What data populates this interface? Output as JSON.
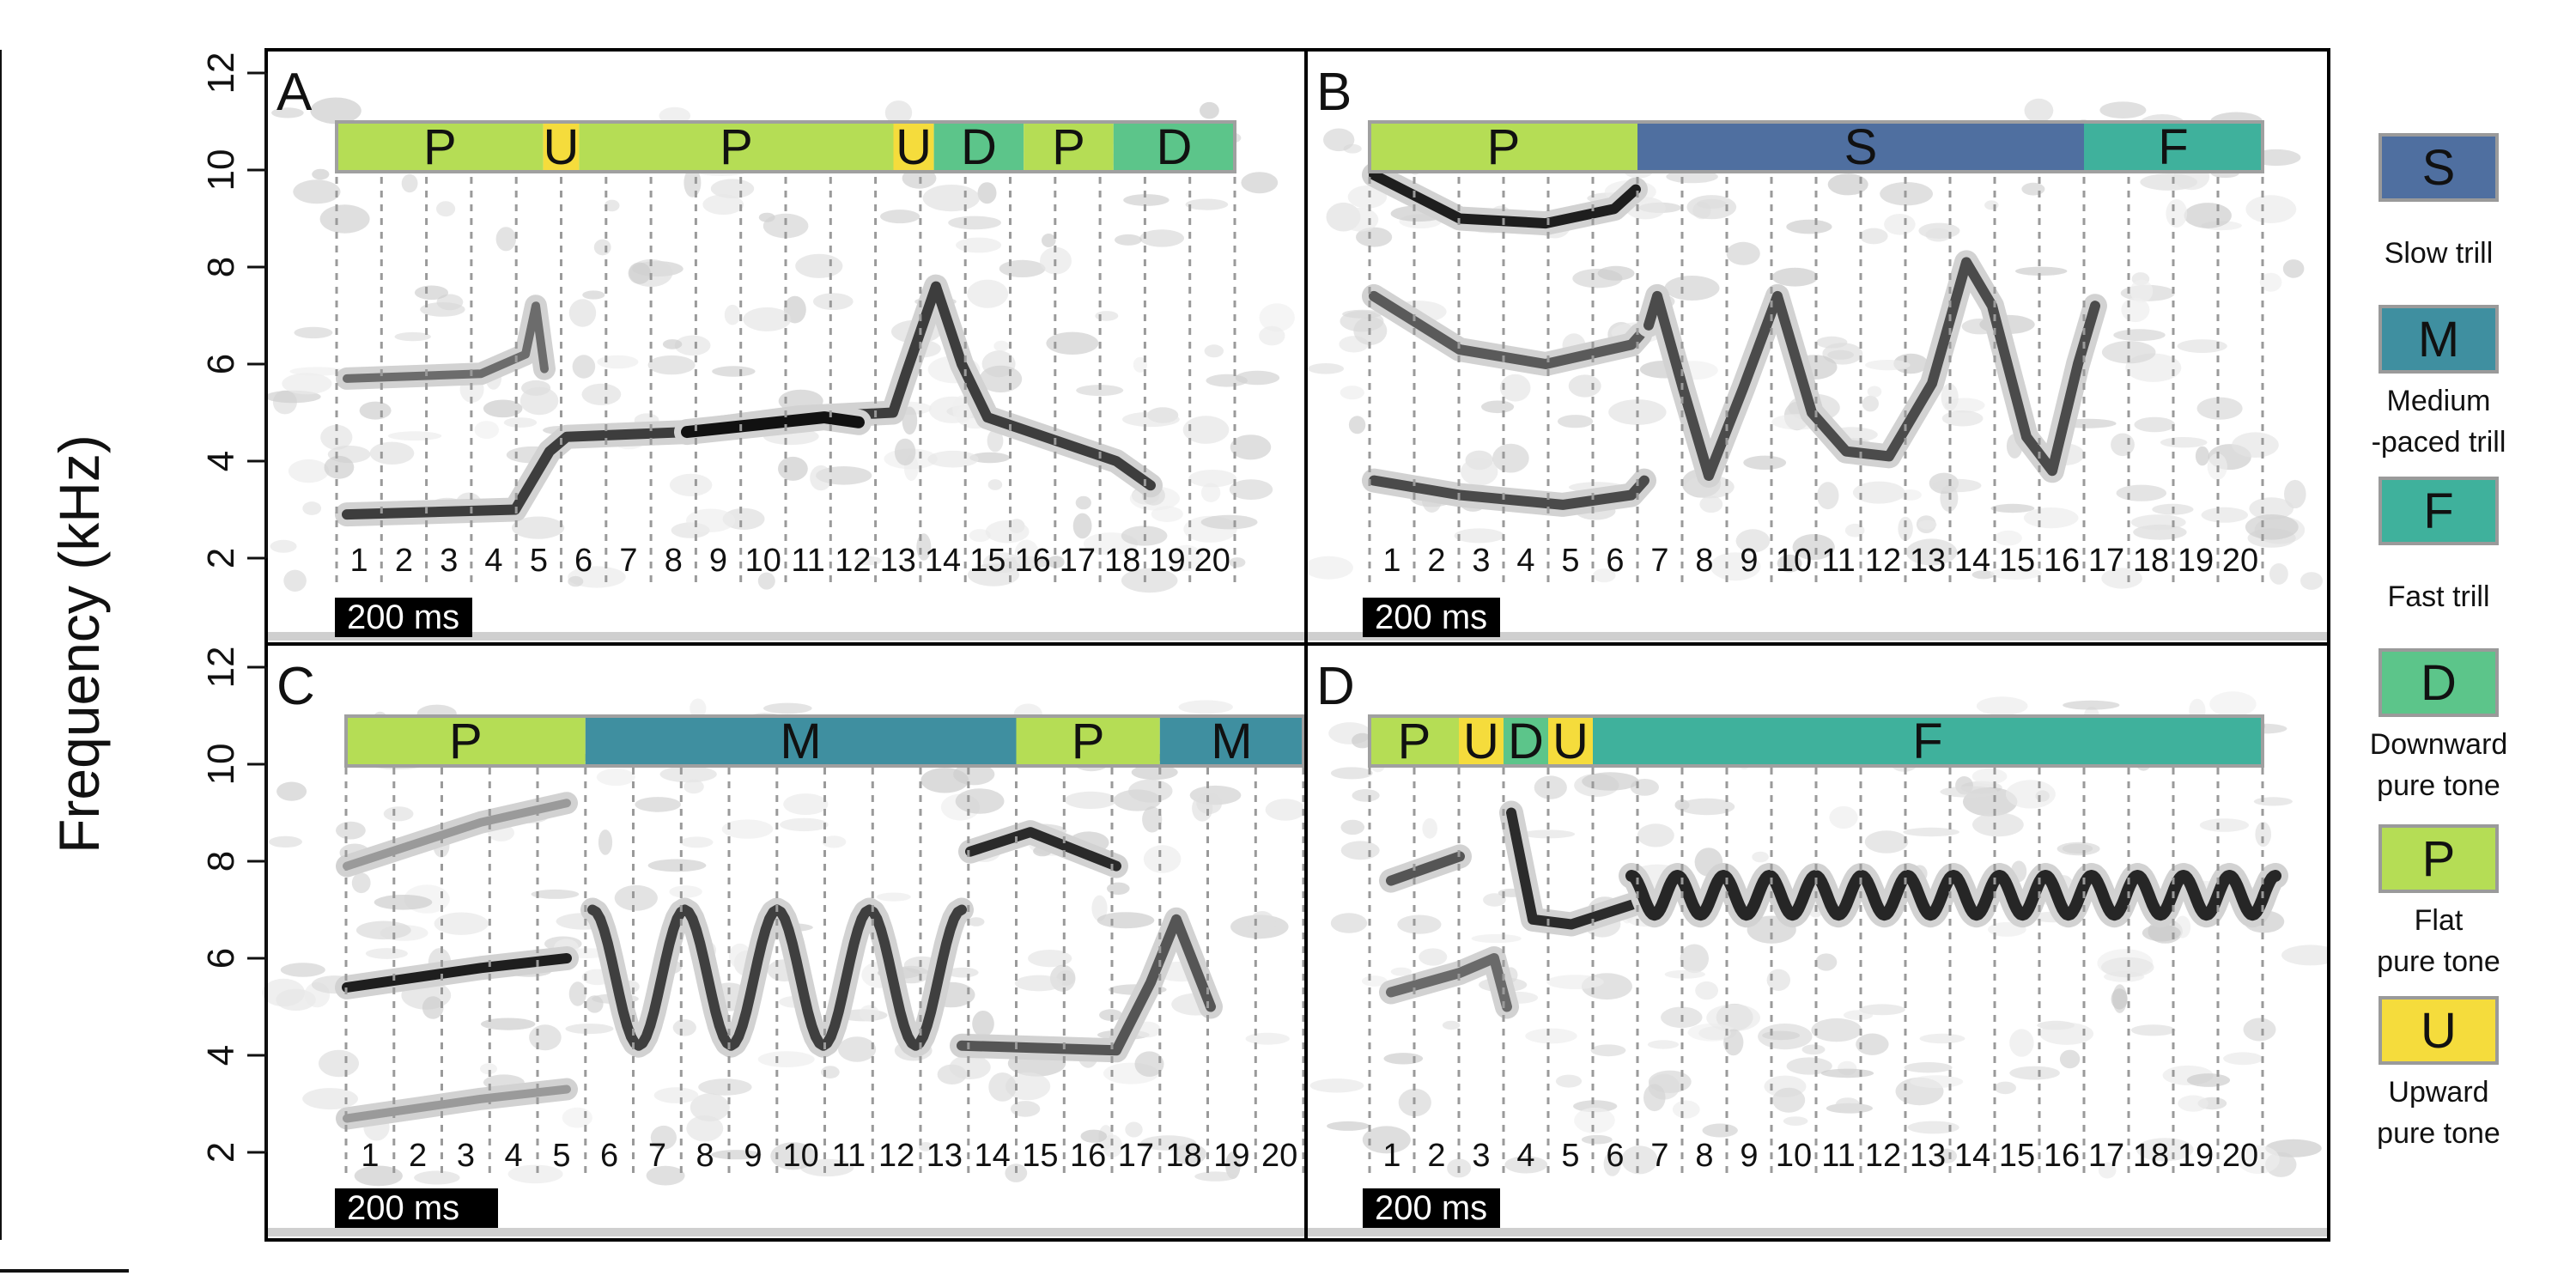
{
  "y_axis": {
    "label": "Frequency (kHz)",
    "ticks": [
      "2",
      "4",
      "6",
      "8",
      "10",
      "12"
    ]
  },
  "scale_bar": "200 ms",
  "panels": [
    {
      "id": "A",
      "segment_count": 20,
      "syllables": [
        {
          "code": "P",
          "span": 4.6,
          "color": "#b5dd55"
        },
        {
          "code": "U",
          "span": 0.8,
          "color": "#f5dc3c"
        },
        {
          "code": "P",
          "span": 7.0,
          "color": "#b5dd55"
        },
        {
          "code": "U",
          "span": 0.9,
          "color": "#f5dc3c"
        },
        {
          "code": "D",
          "span": 2.0,
          "color": "#5cc58a"
        },
        {
          "code": "P",
          "span": 2.0,
          "color": "#b5dd55"
        },
        {
          "code": "D",
          "span": 2.7,
          "color": "#5cc58a"
        }
      ]
    },
    {
      "id": "B",
      "segment_count": 20,
      "syllables": [
        {
          "code": "P",
          "span": 6.0,
          "color": "#b5dd55"
        },
        {
          "code": "S",
          "span": 10.0,
          "color": "#4f6fa0"
        },
        {
          "code": "F",
          "span": 4.0,
          "color": "#3fb19c"
        }
      ]
    },
    {
      "id": "C",
      "segment_count": 20,
      "syllables": [
        {
          "code": "P",
          "span": 5.0,
          "color": "#b5dd55"
        },
        {
          "code": "M",
          "span": 9.0,
          "color": "#3f8fa0"
        },
        {
          "code": "P",
          "span": 3.0,
          "color": "#b5dd55"
        },
        {
          "code": "M",
          "span": 3.0,
          "color": "#3f8fa0"
        }
      ]
    },
    {
      "id": "D",
      "segment_count": 20,
      "syllables": [
        {
          "code": "P",
          "span": 2.0,
          "color": "#b5dd55"
        },
        {
          "code": "U",
          "span": 1.0,
          "color": "#f5dc3c"
        },
        {
          "code": "D",
          "span": 1.0,
          "color": "#5cc58a"
        },
        {
          "code": "U",
          "span": 1.0,
          "color": "#f5dc3c"
        },
        {
          "code": "F",
          "span": 15.0,
          "color": "#3fb19c"
        }
      ]
    }
  ],
  "legend": [
    {
      "code": "S",
      "label_lines": [
        "Slow trill"
      ],
      "color": "#4f6fa0"
    },
    {
      "code": "M",
      "label_lines": [
        "Medium",
        "-paced trill"
      ],
      "color": "#3f8fa0"
    },
    {
      "code": "F",
      "label_lines": [
        "Fast trill"
      ],
      "color": "#3fb19c"
    },
    {
      "code": "D",
      "label_lines": [
        "Downward",
        "pure tone"
      ],
      "color": "#5cc58a"
    },
    {
      "code": "P",
      "label_lines": [
        "Flat",
        "pure tone"
      ],
      "color": "#b5dd55"
    },
    {
      "code": "U",
      "label_lines": [
        "Upward",
        "pure tone"
      ],
      "color": "#f5dc3c"
    }
  ]
}
